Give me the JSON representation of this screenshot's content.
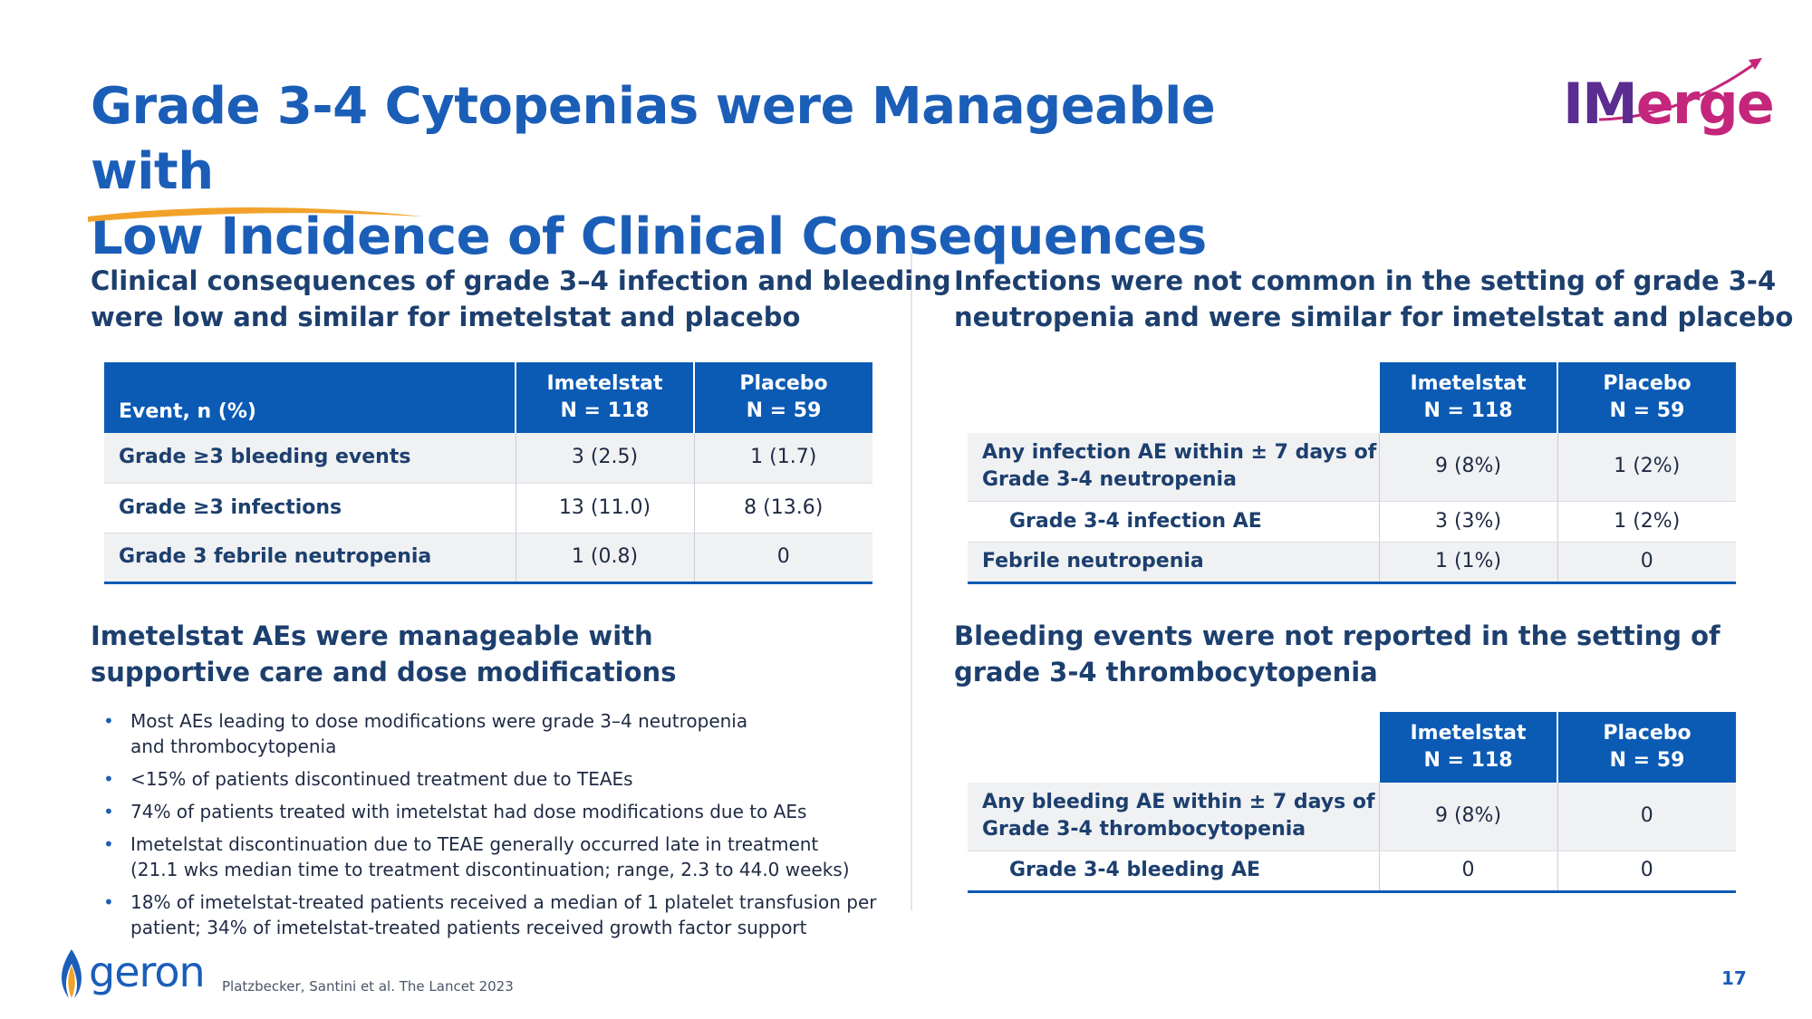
{
  "slide": {
    "title_line1": "Grade 3-4 Cytopenias were Manageable with",
    "title_line2": "Low Incidence of Clinical Consequences",
    "logo": {
      "part1": "IM",
      "part2": "erge"
    },
    "page_number": "17",
    "citation": "Platzbecker, Santini et al. The Lancet 2023",
    "footer_logo": "geron",
    "colors": {
      "title": "#1b5eb8",
      "table_header": "#0b5bb5",
      "logo_purple": "#5b2d90",
      "logo_magenta": "#c4267c",
      "swoosh": "#f2a22a"
    }
  },
  "left_top": {
    "heading_line1": "Clinical consequences of grade 3–4 infection and bleeding",
    "heading_line2": "were low and similar for imetelstat and placebo",
    "table": {
      "col0": "Event, n (%)",
      "col1_line1": "Imetelstat",
      "col1_line2": "N = 118",
      "col2_line1": "Placebo",
      "col2_line2": "N = 59",
      "rows": [
        {
          "label": "Grade ≥3 bleeding events",
          "imetelstat": "3 (2.5)",
          "placebo": "1 (1.7)"
        },
        {
          "label": "Grade ≥3 infections",
          "imetelstat": "13 (11.0)",
          "placebo": "8 (13.6)"
        },
        {
          "label": "Grade 3 febrile neutropenia",
          "imetelstat": "1 (0.8)",
          "placebo": "0"
        }
      ]
    }
  },
  "left_bottom": {
    "heading_line1": "Imetelstat AEs were manageable with",
    "heading_line2": "supportive care and dose modifications",
    "bullets": [
      {
        "line1": "Most AEs leading to dose modifications were grade 3–4 neutropenia",
        "line2": "and thrombocytopenia"
      },
      {
        "line1": "<15% of patients discontinued treatment due to TEAEs",
        "line2": ""
      },
      {
        "line1": "74% of patients treated with imetelstat had dose modifications due to AEs",
        "line2": ""
      },
      {
        "line1": "Imetelstat discontinuation due to TEAE generally occurred late in treatment",
        "line2": "(21.1 wks median time to treatment discontinuation; range, 2.3 to 44.0 weeks)"
      },
      {
        "line1": "18% of imetelstat-treated patients received a median of 1 platelet transfusion per",
        "line2": "patient; 34% of imetelstat-treated patients received growth factor support"
      }
    ]
  },
  "right_top": {
    "heading_line1": "Infections were not common in the setting of grade 3-4",
    "heading_line2": "neutropenia and were similar for imetelstat and placebo",
    "table": {
      "col1_line1": "Imetelstat",
      "col1_line2": "N = 118",
      "col2_line1": "Placebo",
      "col2_line2": "N = 59",
      "rows": [
        {
          "label_line1": "Any infection AE within ± 7 days of",
          "label_line2": "Grade 3-4 neutropenia",
          "imetelstat": "9 (8%)",
          "placebo": "1 (2%)"
        },
        {
          "label_line1": "Grade 3-4 infection AE",
          "label_line2": "",
          "imetelstat": "3 (3%)",
          "placebo": "1 (2%)"
        },
        {
          "label_line1": "Febrile neutropenia",
          "label_line2": "",
          "imetelstat": "1 (1%)",
          "placebo": "0"
        }
      ]
    }
  },
  "right_bottom": {
    "heading_line1": "Bleeding events were not reported in the setting of",
    "heading_line2": "grade 3-4 thrombocytopenia",
    "table": {
      "col1_line1": "Imetelstat",
      "col1_line2": "N = 118",
      "col2_line1": "Placebo",
      "col2_line2": "N = 59",
      "rows": [
        {
          "label_line1": "Any bleeding AE within ± 7 days of",
          "label_line2": "Grade 3-4 thrombocytopenia",
          "imetelstat": "9 (8%)",
          "placebo": "0"
        },
        {
          "label_line1": "Grade 3-4 bleeding AE",
          "label_line2": "",
          "imetelstat": "0",
          "placebo": "0"
        }
      ]
    }
  }
}
